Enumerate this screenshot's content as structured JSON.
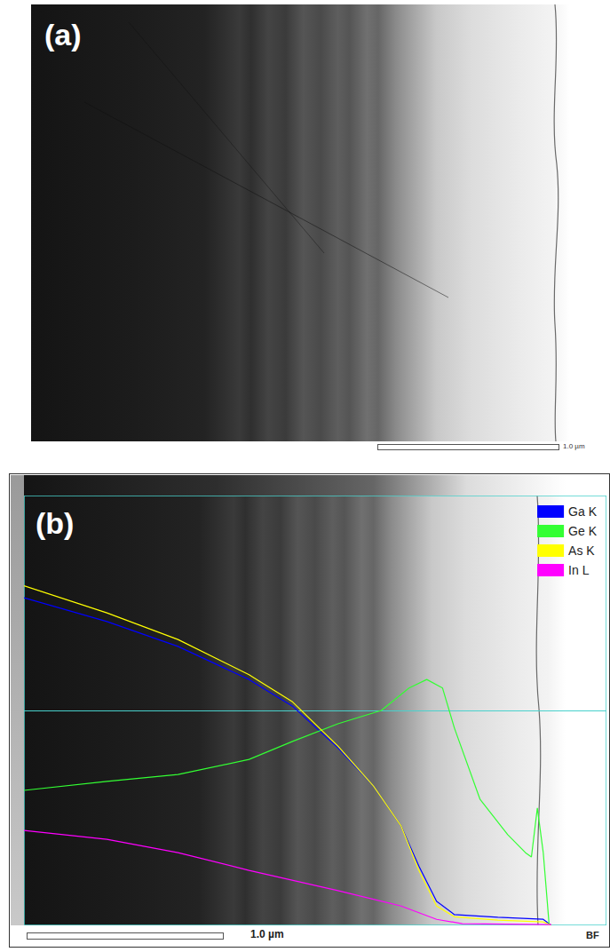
{
  "panels": [
    {
      "label": "(a)",
      "scale_bar": "1.0 µm"
    },
    {
      "label": "(b)",
      "scale_bar": "1.0 µm",
      "corner_label": "BF"
    }
  ],
  "chart_data": {
    "type": "line",
    "legend": "top-right",
    "grid": false,
    "tick_labels": false,
    "xlim": [
      0,
      2.95
    ],
    "ylim": [
      0,
      100
    ],
    "series": [
      {
        "name": "Ga K",
        "color": "#0000ff",
        "x": [
          0,
          0.42,
          0.78,
          1.14,
          1.36,
          1.59,
          1.77,
          1.91,
          2.0,
          2.09,
          2.18,
          2.4,
          2.63,
          2.67
        ],
        "values": [
          76.2,
          70.7,
          64.9,
          57.2,
          51,
          41.3,
          32.4,
          23.1,
          13.8,
          5.6,
          2.5,
          1.9,
          1.4,
          0
        ]
      },
      {
        "name": "Ge K",
        "color": "#33ff33",
        "x": [
          0,
          0.42,
          0.78,
          1.14,
          1.36,
          1.59,
          1.81,
          1.95,
          2.04,
          2.12,
          2.18,
          2.31,
          2.45,
          2.54,
          2.57,
          2.6,
          2.63,
          2.66
        ],
        "values": [
          31.4,
          33.5,
          35.1,
          38.6,
          42.8,
          46.9,
          50,
          55.2,
          57.2,
          55.2,
          45.9,
          29.3,
          21.1,
          16.9,
          15.9,
          27.3,
          16.9,
          0
        ]
      },
      {
        "name": "As K",
        "color": "#ffff00",
        "x": [
          0,
          0.42,
          0.78,
          1.14,
          1.36,
          1.59,
          1.77,
          1.91,
          2.0,
          2.09,
          2.18,
          2.4,
          2.63,
          2.67
        ],
        "values": [
          79,
          72.7,
          66.5,
          58.3,
          52,
          41.7,
          32.4,
          23.1,
          12.8,
          4.5,
          2,
          1.2,
          0.8,
          0
        ]
      },
      {
        "name": "In L",
        "color": "#ff00ff",
        "x": [
          0,
          0.42,
          0.78,
          1.14,
          1.59,
          1.91,
          2.09,
          2.22,
          2.67
        ],
        "values": [
          22.1,
          20,
          16.9,
          12.8,
          8.1,
          4.5,
          1.4,
          0.4,
          0.2
        ]
      }
    ]
  }
}
